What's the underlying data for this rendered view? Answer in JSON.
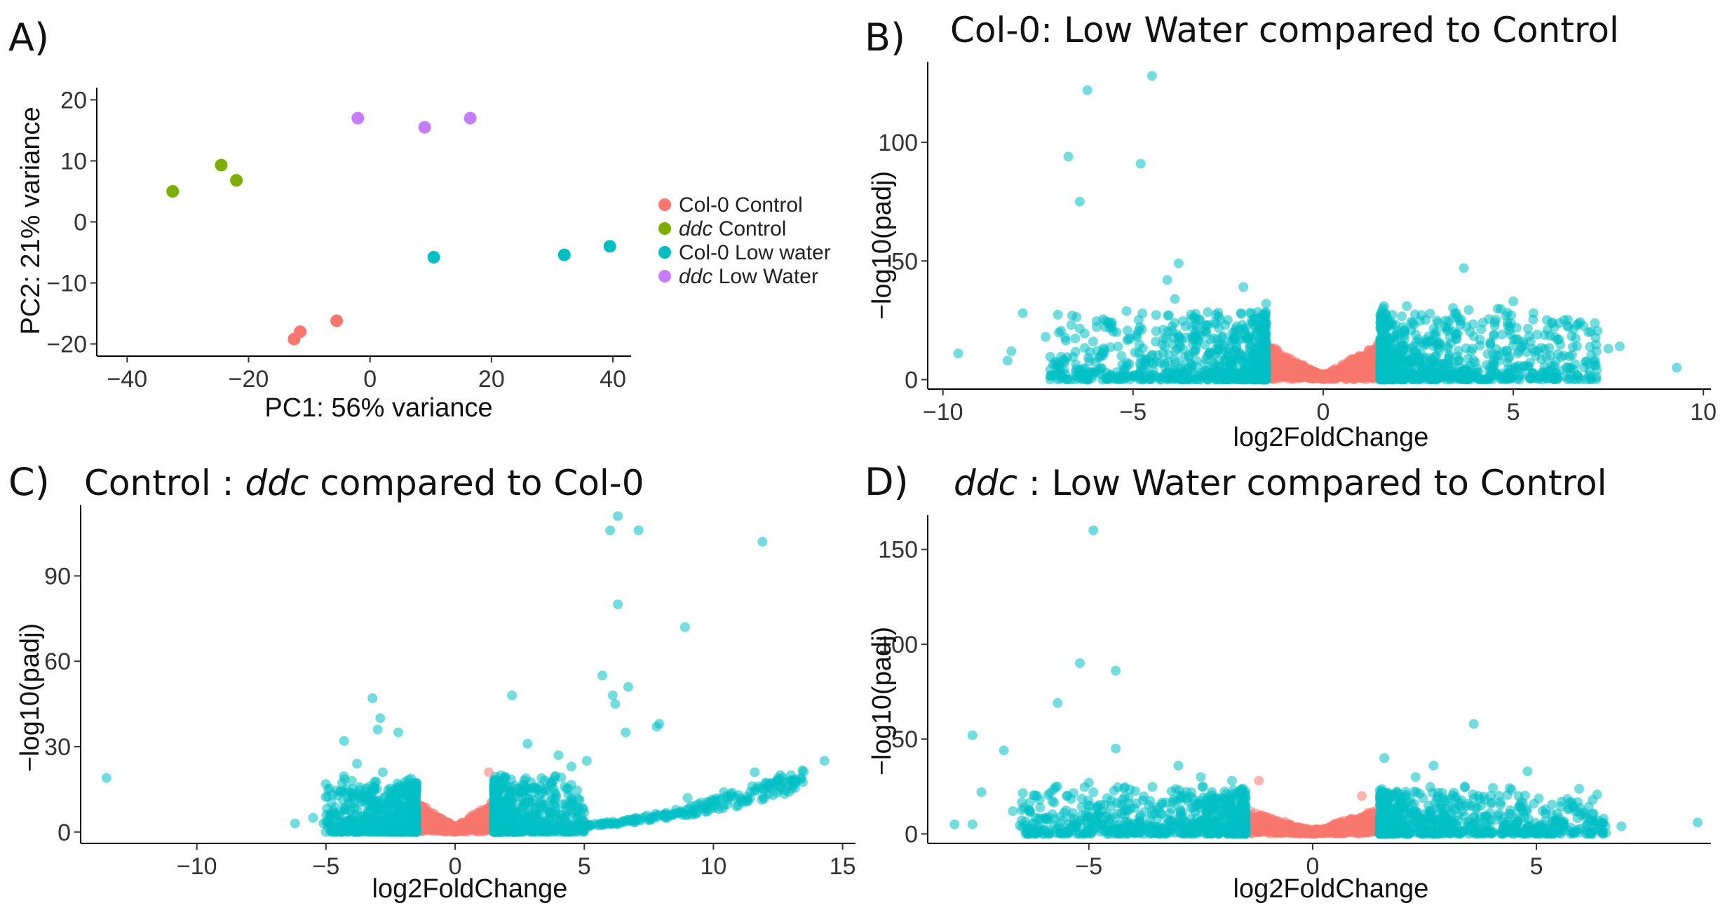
{
  "chart_data": [
    {
      "panel_label": "A)",
      "type": "scatter",
      "title": "",
      "xlabel": "PC1: 56% variance",
      "ylabel": "PC2: 21% variance",
      "xlim": [
        -45,
        43
      ],
      "ylim": [
        -22,
        22
      ],
      "xticks": [
        -40,
        -20,
        0,
        20,
        40
      ],
      "yticks": [
        -20,
        -10,
        0,
        10,
        20
      ],
      "legend_position": "right",
      "series": [
        {
          "name": "Col-0 Control",
          "name_italic": "",
          "name_rest": "Col-0 Control",
          "color": "#F8766D",
          "points": [
            [
              -12.5,
              -19.2
            ],
            [
              -11.5,
              -18.0
            ],
            [
              -5.5,
              -16.2
            ]
          ]
        },
        {
          "name": "ddc Control",
          "name_italic": "ddc",
          "name_rest": " Control",
          "color": "#7CAE00",
          "points": [
            [
              -32.5,
              5.0
            ],
            [
              -24.5,
              9.3
            ],
            [
              -22.0,
              6.8
            ]
          ]
        },
        {
          "name": "Col-0 Low water",
          "name_italic": "",
          "name_rest": "Col-0 Low water",
          "color": "#00BFC4",
          "points": [
            [
              10.5,
              -5.8
            ],
            [
              32.0,
              -5.4
            ],
            [
              39.5,
              -4.0
            ]
          ]
        },
        {
          "name": "ddc Low Water",
          "name_italic": "ddc",
          "name_rest": " Low Water",
          "color": "#C77CFF",
          "points": [
            [
              -2.0,
              17.0
            ],
            [
              9.0,
              15.5
            ],
            [
              16.5,
              17.0
            ]
          ]
        }
      ]
    },
    {
      "panel_label": "B)",
      "type": "scatter",
      "title": "Col-0: Low Water compared to Control",
      "title_italic": "",
      "title_rest": "Col-0: Low Water compared to Control",
      "xlabel": "log2FoldChange",
      "ylabel": "−log10(padj)",
      "xlim": [
        -10.4,
        10.2
      ],
      "ylim": [
        -4,
        134
      ],
      "xticks": [
        -10,
        -5,
        0,
        5,
        10
      ],
      "xtick_labels": [
        "−10",
        "−5",
        "0",
        "5",
        "10"
      ],
      "yticks": [
        0,
        50,
        100
      ],
      "threshold": 1.5,
      "sig_color": "#00BFC4",
      "ns_color": "#F8766D",
      "outliers": [
        [
          -4.5,
          128
        ],
        [
          -6.2,
          122
        ],
        [
          -6.7,
          94
        ],
        [
          -4.8,
          91
        ],
        [
          -6.4,
          75
        ],
        [
          -3.8,
          49
        ],
        [
          -4.1,
          42
        ],
        [
          -2.1,
          39
        ],
        [
          -3.9,
          34
        ],
        [
          -1.5,
          32
        ],
        [
          -6.6,
          27
        ],
        [
          -7.9,
          28
        ],
        [
          -8.2,
          12
        ],
        [
          -9.6,
          11
        ],
        [
          -8.3,
          8
        ],
        [
          -7.0,
          6
        ],
        [
          -6.4,
          4
        ],
        [
          -7.3,
          18
        ],
        [
          -5.8,
          10
        ],
        [
          3.7,
          47
        ],
        [
          5.0,
          33
        ],
        [
          2.2,
          31
        ],
        [
          1.6,
          31
        ],
        [
          3.5,
          28
        ],
        [
          4.2,
          24
        ],
        [
          4.7,
          19
        ],
        [
          5.5,
          13
        ],
        [
          5.9,
          21
        ],
        [
          6.1,
          18
        ],
        [
          7.5,
          13
        ],
        [
          7.8,
          14
        ],
        [
          9.3,
          5
        ],
        [
          6.5,
          5
        ],
        [
          7.2,
          4
        ],
        [
          3.3,
          22
        ],
        [
          2.8,
          16
        ]
      ],
      "seed": 11,
      "n_bulk": 1500,
      "bulk_spread": 2.6,
      "bulk_ymax": 24
    },
    {
      "panel_label": "C)",
      "type": "scatter",
      "title": "Control : ddc compared to Col-0",
      "title_italic": "ddc",
      "title_pre": "Control : ",
      "title_rest": " compared to Col-0",
      "xlabel": "log2FoldChange",
      "ylabel": "−log10(padj)",
      "xlim": [
        -14.5,
        15.5
      ],
      "ylim": [
        -4,
        115
      ],
      "xticks": [
        -10,
        -5,
        0,
        5,
        10,
        15
      ],
      "xtick_labels": [
        "−10",
        "−5",
        "0",
        "5",
        "10",
        "15"
      ],
      "yticks": [
        0,
        30,
        60,
        90
      ],
      "threshold": 1.5,
      "sig_color": "#00BFC4",
      "ns_color": "#F8766D",
      "outliers": [
        [
          6.3,
          111
        ],
        [
          6.0,
          106
        ],
        [
          7.1,
          106
        ],
        [
          11.9,
          102
        ],
        [
          6.3,
          80
        ],
        [
          8.9,
          72
        ],
        [
          5.7,
          55
        ],
        [
          6.7,
          51
        ],
        [
          6.1,
          48
        ],
        [
          2.2,
          48
        ],
        [
          6.2,
          45
        ],
        [
          7.9,
          38
        ],
        [
          7.8,
          37
        ],
        [
          6.6,
          35
        ],
        [
          -3.2,
          47
        ],
        [
          -2.9,
          40
        ],
        [
          -4.3,
          32
        ],
        [
          -3.0,
          36
        ],
        [
          -2.2,
          35
        ],
        [
          -3.8,
          24
        ],
        [
          -4.0,
          18
        ],
        [
          -13.5,
          19
        ],
        [
          -6.2,
          3
        ],
        [
          -5.5,
          5
        ],
        [
          -5.1,
          3
        ],
        [
          -2.8,
          21
        ],
        [
          3.7,
          11
        ],
        [
          2.8,
          31
        ],
        [
          4.0,
          27
        ],
        [
          9.0,
          12
        ],
        [
          10.4,
          14
        ],
        [
          12.0,
          17
        ],
        [
          12.5,
          19
        ],
        [
          13.0,
          20
        ],
        [
          14.3,
          25
        ],
        [
          11.6,
          21
        ],
        [
          1.3,
          21
        ],
        [
          5.1,
          25
        ],
        [
          4.5,
          23
        ]
      ],
      "seed": 23,
      "n_bulk": 1300,
      "bulk_spread": 1.6,
      "bulk_ymax": 16,
      "tail_n": 260,
      "tail_xmax": 13.5
    },
    {
      "panel_label": "D)",
      "type": "scatter",
      "title": "ddc : Low Water compared to Control",
      "title_italic": "ddc",
      "title_pre": "",
      "title_rest": " :  Low Water compared to Control",
      "xlabel": "log2FoldChange",
      "ylabel": "−log10(padj)",
      "xlim": [
        -8.6,
        8.9
      ],
      "ylim": [
        -5,
        168
      ],
      "xticks": [
        -5,
        0,
        5
      ],
      "xtick_labels": [
        "−5",
        "0",
        "5"
      ],
      "yticks": [
        0,
        50,
        100,
        150
      ],
      "threshold": 1.5,
      "sig_color": "#00BFC4",
      "ns_color": "#F8766D",
      "outliers": [
        [
          -4.9,
          160
        ],
        [
          -5.2,
          90
        ],
        [
          -4.4,
          86
        ],
        [
          -5.7,
          69
        ],
        [
          -7.6,
          52
        ],
        [
          -6.9,
          44
        ],
        [
          -4.4,
          45
        ],
        [
          -3.0,
          36
        ],
        [
          -5.0,
          27
        ],
        [
          -4.9,
          22
        ],
        [
          -7.4,
          22
        ],
        [
          -7.6,
          5
        ],
        [
          -8.0,
          5
        ],
        [
          -6.0,
          8
        ],
        [
          -6.7,
          12
        ],
        [
          -2.5,
          30
        ],
        [
          -1.8,
          28
        ],
        [
          -1.2,
          28
        ],
        [
          3.6,
          58
        ],
        [
          1.6,
          40
        ],
        [
          2.7,
          36
        ],
        [
          2.3,
          30
        ],
        [
          4.8,
          33
        ],
        [
          4.6,
          20
        ],
        [
          5.8,
          15
        ],
        [
          6.0,
          10
        ],
        [
          6.5,
          8
        ],
        [
          6.3,
          5
        ],
        [
          6.9,
          4
        ],
        [
          8.6,
          6
        ],
        [
          1.1,
          20
        ],
        [
          3.4,
          25
        ]
      ],
      "seed": 37,
      "n_bulk": 1500,
      "bulk_spread": 2.3,
      "bulk_ymax": 20
    }
  ]
}
